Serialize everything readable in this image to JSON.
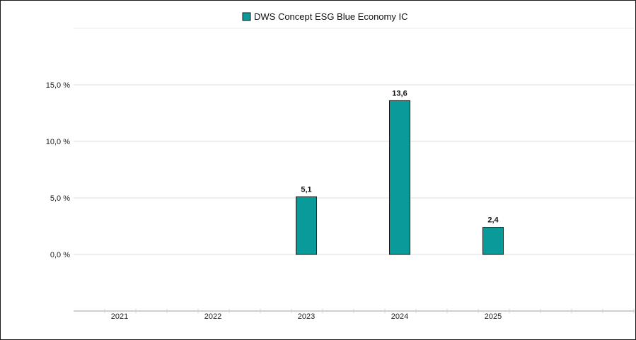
{
  "chart_data": {
    "type": "bar",
    "categories": [
      "2021",
      "2022",
      "2023",
      "2024",
      "2025"
    ],
    "series": [
      {
        "name": "DWS Concept ESG Blue Economy IC",
        "values": [
          null,
          null,
          5.1,
          13.6,
          2.4
        ],
        "labels": [
          "",
          "",
          "5,1",
          "13,6",
          "2,4"
        ],
        "color": "#0a9a9a"
      }
    ],
    "yticks": [
      0,
      5,
      10,
      15
    ],
    "ytick_labels": [
      "0,0 %",
      "5,0 %",
      "10,0 %",
      "15,0 %"
    ],
    "ylim": [
      -5,
      20
    ],
    "grid": true,
    "legend_position": "top-center"
  }
}
